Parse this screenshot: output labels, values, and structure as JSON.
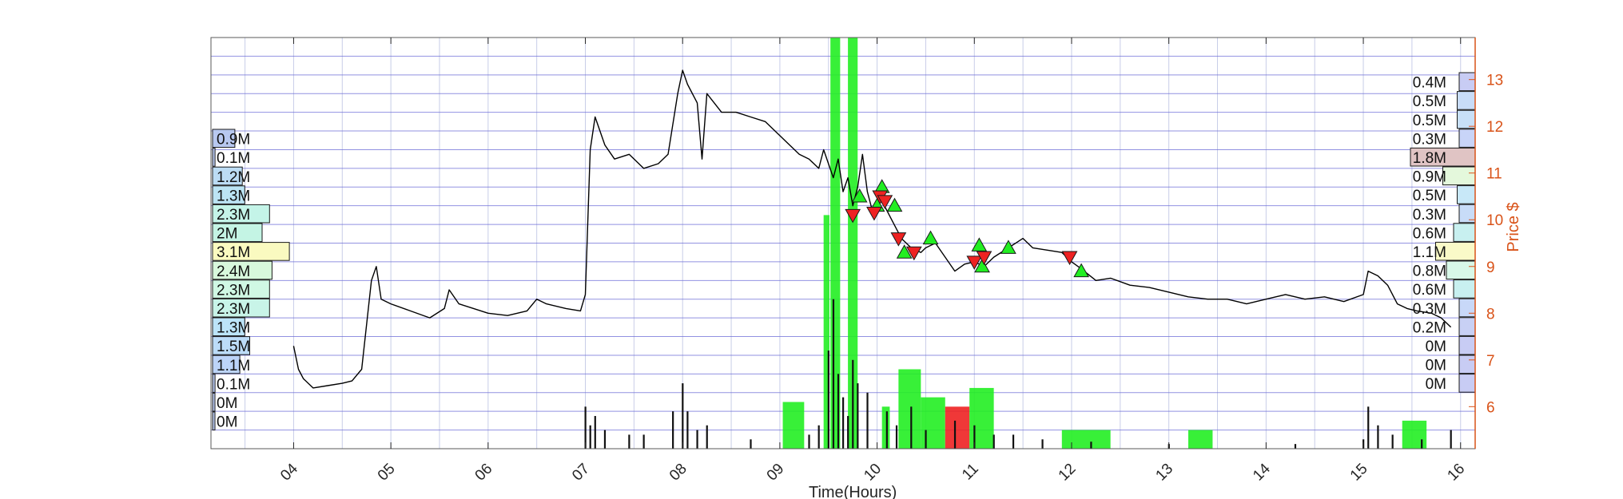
{
  "chart_data": {
    "type": "line",
    "xlabel": "Time(Hours)",
    "ylabel": "Price $",
    "x_ticks": [
      "04",
      "05",
      "06",
      "07",
      "08",
      "09",
      "10",
      "11",
      "12",
      "13",
      "14",
      "15",
      "16"
    ],
    "x_tick_values": [
      4,
      5,
      6,
      7,
      8,
      9,
      10,
      11,
      12,
      13,
      14,
      15,
      16
    ],
    "xlim": [
      3.15,
      16.15
    ],
    "ylim": [
      5.1,
      13.9
    ],
    "y_ticks": [
      6,
      7,
      8,
      9,
      10,
      11,
      12,
      13
    ],
    "y_axis_side": "right",
    "grid": true,
    "colors": {
      "price": "#000000",
      "axis": "#D95319",
      "grid_minor": "#c8cde8",
      "profile_line": "#6e6ed8",
      "buy": "#22ee22",
      "sell": "#ee2222",
      "volume_main": "#111111",
      "volume_grey": "#888888"
    },
    "price_series": {
      "name": "Price",
      "points": [
        [
          4.0,
          7.3
        ],
        [
          4.05,
          6.8
        ],
        [
          4.1,
          6.6
        ],
        [
          4.2,
          6.4
        ],
        [
          4.35,
          6.45
        ],
        [
          4.5,
          6.5
        ],
        [
          4.6,
          6.55
        ],
        [
          4.7,
          6.8
        ],
        [
          4.8,
          8.7
        ],
        [
          4.85,
          9.0
        ],
        [
          4.9,
          8.3
        ],
        [
          5.0,
          8.2
        ],
        [
          5.2,
          8.05
        ],
        [
          5.4,
          7.9
        ],
        [
          5.55,
          8.1
        ],
        [
          5.6,
          8.5
        ],
        [
          5.7,
          8.2
        ],
        [
          5.85,
          8.1
        ],
        [
          6.0,
          8.0
        ],
        [
          6.2,
          7.95
        ],
        [
          6.4,
          8.05
        ],
        [
          6.5,
          8.3
        ],
        [
          6.6,
          8.2
        ],
        [
          6.8,
          8.1
        ],
        [
          6.95,
          8.05
        ],
        [
          7.0,
          8.4
        ],
        [
          7.05,
          11.5
        ],
        [
          7.1,
          12.2
        ],
        [
          7.2,
          11.6
        ],
        [
          7.3,
          11.3
        ],
        [
          7.45,
          11.4
        ],
        [
          7.6,
          11.1
        ],
        [
          7.75,
          11.2
        ],
        [
          7.85,
          11.4
        ],
        [
          7.95,
          12.7
        ],
        [
          8.0,
          13.2
        ],
        [
          8.05,
          12.9
        ],
        [
          8.15,
          12.5
        ],
        [
          8.2,
          11.3
        ],
        [
          8.25,
          12.7
        ],
        [
          8.4,
          12.3
        ],
        [
          8.55,
          12.3
        ],
        [
          8.7,
          12.2
        ],
        [
          8.85,
          12.1
        ],
        [
          9.0,
          11.8
        ],
        [
          9.1,
          11.6
        ],
        [
          9.2,
          11.4
        ],
        [
          9.3,
          11.3
        ],
        [
          9.4,
          11.1
        ],
        [
          9.45,
          11.5
        ],
        [
          9.5,
          11.2
        ],
        [
          9.55,
          10.9
        ],
        [
          9.6,
          11.3
        ],
        [
          9.65,
          10.6
        ],
        [
          9.7,
          10.9
        ],
        [
          9.75,
          10.3
        ],
        [
          9.8,
          10.7
        ],
        [
          9.85,
          11.4
        ],
        [
          9.9,
          10.6
        ],
        [
          9.95,
          10.2
        ],
        [
          10.05,
          10.4
        ],
        [
          10.15,
          10.0
        ],
        [
          10.25,
          9.6
        ],
        [
          10.35,
          9.4
        ],
        [
          10.45,
          9.3
        ],
        [
          10.5,
          9.4
        ],
        [
          10.6,
          9.5
        ],
        [
          10.7,
          9.2
        ],
        [
          10.8,
          8.9
        ],
        [
          10.9,
          9.05
        ],
        [
          11.0,
          9.1
        ],
        [
          11.1,
          9.0
        ],
        [
          11.2,
          9.2
        ],
        [
          11.35,
          9.4
        ],
        [
          11.5,
          9.6
        ],
        [
          11.6,
          9.4
        ],
        [
          11.75,
          9.35
        ],
        [
          11.9,
          9.3
        ],
        [
          12.0,
          9.1
        ],
        [
          12.1,
          8.95
        ],
        [
          12.25,
          8.7
        ],
        [
          12.4,
          8.75
        ],
        [
          12.6,
          8.6
        ],
        [
          12.8,
          8.55
        ],
        [
          13.0,
          8.45
        ],
        [
          13.2,
          8.35
        ],
        [
          13.4,
          8.3
        ],
        [
          13.6,
          8.3
        ],
        [
          13.8,
          8.2
        ],
        [
          14.0,
          8.3
        ],
        [
          14.2,
          8.4
        ],
        [
          14.4,
          8.3
        ],
        [
          14.6,
          8.35
        ],
        [
          14.8,
          8.25
        ],
        [
          15.0,
          8.4
        ],
        [
          15.05,
          8.9
        ],
        [
          15.15,
          8.8
        ],
        [
          15.25,
          8.6
        ],
        [
          15.35,
          8.2
        ],
        [
          15.45,
          8.1
        ],
        [
          15.55,
          8.05
        ],
        [
          15.7,
          8.0
        ],
        [
          15.8,
          7.9
        ],
        [
          15.9,
          7.7
        ]
      ]
    },
    "trade_signals": {
      "buy": [
        [
          9.82,
          10.5
        ],
        [
          10.0,
          10.3
        ],
        [
          10.05,
          10.7
        ],
        [
          10.18,
          10.3
        ],
        [
          10.28,
          9.3
        ],
        [
          10.55,
          9.6
        ],
        [
          11.05,
          9.45
        ],
        [
          11.08,
          9.0
        ],
        [
          11.35,
          9.4
        ],
        [
          12.1,
          8.9
        ]
      ],
      "sell": [
        [
          9.75,
          10.1
        ],
        [
          9.97,
          10.15
        ],
        [
          10.03,
          10.5
        ],
        [
          10.08,
          10.4
        ],
        [
          10.22,
          9.6
        ],
        [
          10.38,
          9.3
        ],
        [
          11.0,
          9.1
        ],
        [
          11.1,
          9.2
        ],
        [
          11.98,
          9.2
        ]
      ]
    },
    "volume_profile_left": [
      {
        "label": "0.9M",
        "value": 0.9,
        "color": "#b8c8f0"
      },
      {
        "label": "0.1M",
        "value": 0.1,
        "color": "#b8c8f0"
      },
      {
        "label": "1.2M",
        "value": 1.2,
        "color": "#bcdcf4"
      },
      {
        "label": "1.3M",
        "value": 1.3,
        "color": "#bce4f4"
      },
      {
        "label": "2.3M",
        "value": 2.3,
        "color": "#c4f4e8"
      },
      {
        "label": "2M",
        "value": 2.0,
        "color": "#c4f4e4"
      },
      {
        "label": "3.1M",
        "value": 3.1,
        "color": "#fafac0"
      },
      {
        "label": "2.4M",
        "value": 2.4,
        "color": "#d8f8dc"
      },
      {
        "label": "2.3M",
        "value": 2.3,
        "color": "#d0f8e4"
      },
      {
        "label": "2.3M",
        "value": 2.3,
        "color": "#c8f4e8"
      },
      {
        "label": "1.3M",
        "value": 1.3,
        "color": "#bce4f8"
      },
      {
        "label": "1.5M",
        "value": 1.5,
        "color": "#bcdcf8"
      },
      {
        "label": "1.1M",
        "value": 1.1,
        "color": "#bcd4f8"
      },
      {
        "label": "0.1M",
        "value": 0.1,
        "color": "#b8c8f0"
      },
      {
        "label": "0M",
        "value": 0.0,
        "color": "#b8c8f0"
      },
      {
        "label": "0M",
        "value": 0.0,
        "color": "#b8c8f0"
      }
    ],
    "volume_profile_right": [
      {
        "label": "0.4M",
        "value": 0.4,
        "color": "#c8ccf4"
      },
      {
        "label": "0.5M",
        "value": 0.5,
        "color": "#c8dcf8"
      },
      {
        "label": "0.5M",
        "value": 0.5,
        "color": "#c8e0f8"
      },
      {
        "label": "0.3M",
        "value": 0.3,
        "color": "#c8d4f8"
      },
      {
        "label": "1.8M",
        "value": 1.8,
        "color": "#e0c4c4"
      },
      {
        "label": "0.9M",
        "value": 0.9,
        "color": "#e4f8dc"
      },
      {
        "label": "0.5M",
        "value": 0.5,
        "color": "#c8e8f8"
      },
      {
        "label": "0.3M",
        "value": 0.3,
        "color": "#c8dcf8"
      },
      {
        "label": "0.6M",
        "value": 0.6,
        "color": "#c8f0f0"
      },
      {
        "label": "1.1M",
        "value": 1.1,
        "color": "#fafac8"
      },
      {
        "label": "0.8M",
        "value": 0.8,
        "color": "#d8f8e8"
      },
      {
        "label": "0.6M",
        "value": 0.6,
        "color": "#c8f0f0"
      },
      {
        "label": "0.3M",
        "value": 0.3,
        "color": "#c8d8f8"
      },
      {
        "label": "0.2M",
        "value": 0.2,
        "color": "#c8d0f4"
      },
      {
        "label": "0M",
        "value": 0.0,
        "color": "#c8ccf4"
      },
      {
        "label": "0M",
        "value": 0.0,
        "color": "#c8ccf4"
      },
      {
        "label": "0M",
        "value": 0.0,
        "color": "#c8ccf4"
      }
    ],
    "signal_bars": [
      {
        "kind": "buy",
        "x0": 9.03,
        "x1": 9.25,
        "top": 6.1
      },
      {
        "kind": "buy",
        "x0": 9.52,
        "x1": 9.62,
        "top": 13.9
      },
      {
        "kind": "buy",
        "x0": 9.7,
        "x1": 9.8,
        "top": 13.9
      },
      {
        "kind": "buy",
        "x0": 9.45,
        "x1": 9.51,
        "top": 10.1
      },
      {
        "kind": "buy",
        "x0": 10.05,
        "x1": 10.13,
        "top": 6.0
      },
      {
        "kind": "buy",
        "x0": 10.22,
        "x1": 10.45,
        "top": 6.8
      },
      {
        "kind": "buy",
        "x0": 10.45,
        "x1": 10.7,
        "top": 6.2
      },
      {
        "kind": "sell",
        "x0": 10.7,
        "x1": 10.95,
        "top": 6.0
      },
      {
        "kind": "buy",
        "x0": 10.95,
        "x1": 11.2,
        "top": 6.4
      },
      {
        "kind": "buy",
        "x0": 11.9,
        "x1": 12.4,
        "top": 5.5
      },
      {
        "kind": "buy",
        "x0": 13.2,
        "x1": 13.45,
        "top": 5.5
      },
      {
        "kind": "buy",
        "x0": 15.4,
        "x1": 15.65,
        "top": 5.7
      }
    ],
    "volume_series": {
      "name": "Volume",
      "bars": [
        [
          7.0,
          6.0
        ],
        [
          7.05,
          5.6
        ],
        [
          7.1,
          5.8
        ],
        [
          7.2,
          5.5
        ],
        [
          7.45,
          5.4
        ],
        [
          7.6,
          5.4
        ],
        [
          7.9,
          5.9
        ],
        [
          8.0,
          6.5
        ],
        [
          8.05,
          5.9
        ],
        [
          8.15,
          5.5
        ],
        [
          8.25,
          5.6
        ],
        [
          8.7,
          5.3
        ],
        [
          9.3,
          5.4
        ],
        [
          9.4,
          5.6
        ],
        [
          9.5,
          7.2
        ],
        [
          9.55,
          8.3
        ],
        [
          9.6,
          6.7
        ],
        [
          9.65,
          6.2
        ],
        [
          9.7,
          5.8
        ],
        [
          9.75,
          7.0
        ],
        [
          9.8,
          6.5
        ],
        [
          9.9,
          6.3
        ],
        [
          10.1,
          5.9
        ],
        [
          10.2,
          5.6
        ],
        [
          10.35,
          6.0
        ],
        [
          10.5,
          5.5
        ],
        [
          10.8,
          5.7
        ],
        [
          11.0,
          5.6
        ],
        [
          11.2,
          5.4
        ],
        [
          11.4,
          5.4
        ],
        [
          11.7,
          5.3
        ],
        [
          12.2,
          5.25
        ],
        [
          13.0,
          5.2
        ],
        [
          14.3,
          5.2
        ],
        [
          15.0,
          5.3
        ],
        [
          15.05,
          6.0
        ],
        [
          15.15,
          5.6
        ],
        [
          15.3,
          5.4
        ],
        [
          15.6,
          5.3
        ],
        [
          15.9,
          5.5
        ]
      ]
    }
  }
}
